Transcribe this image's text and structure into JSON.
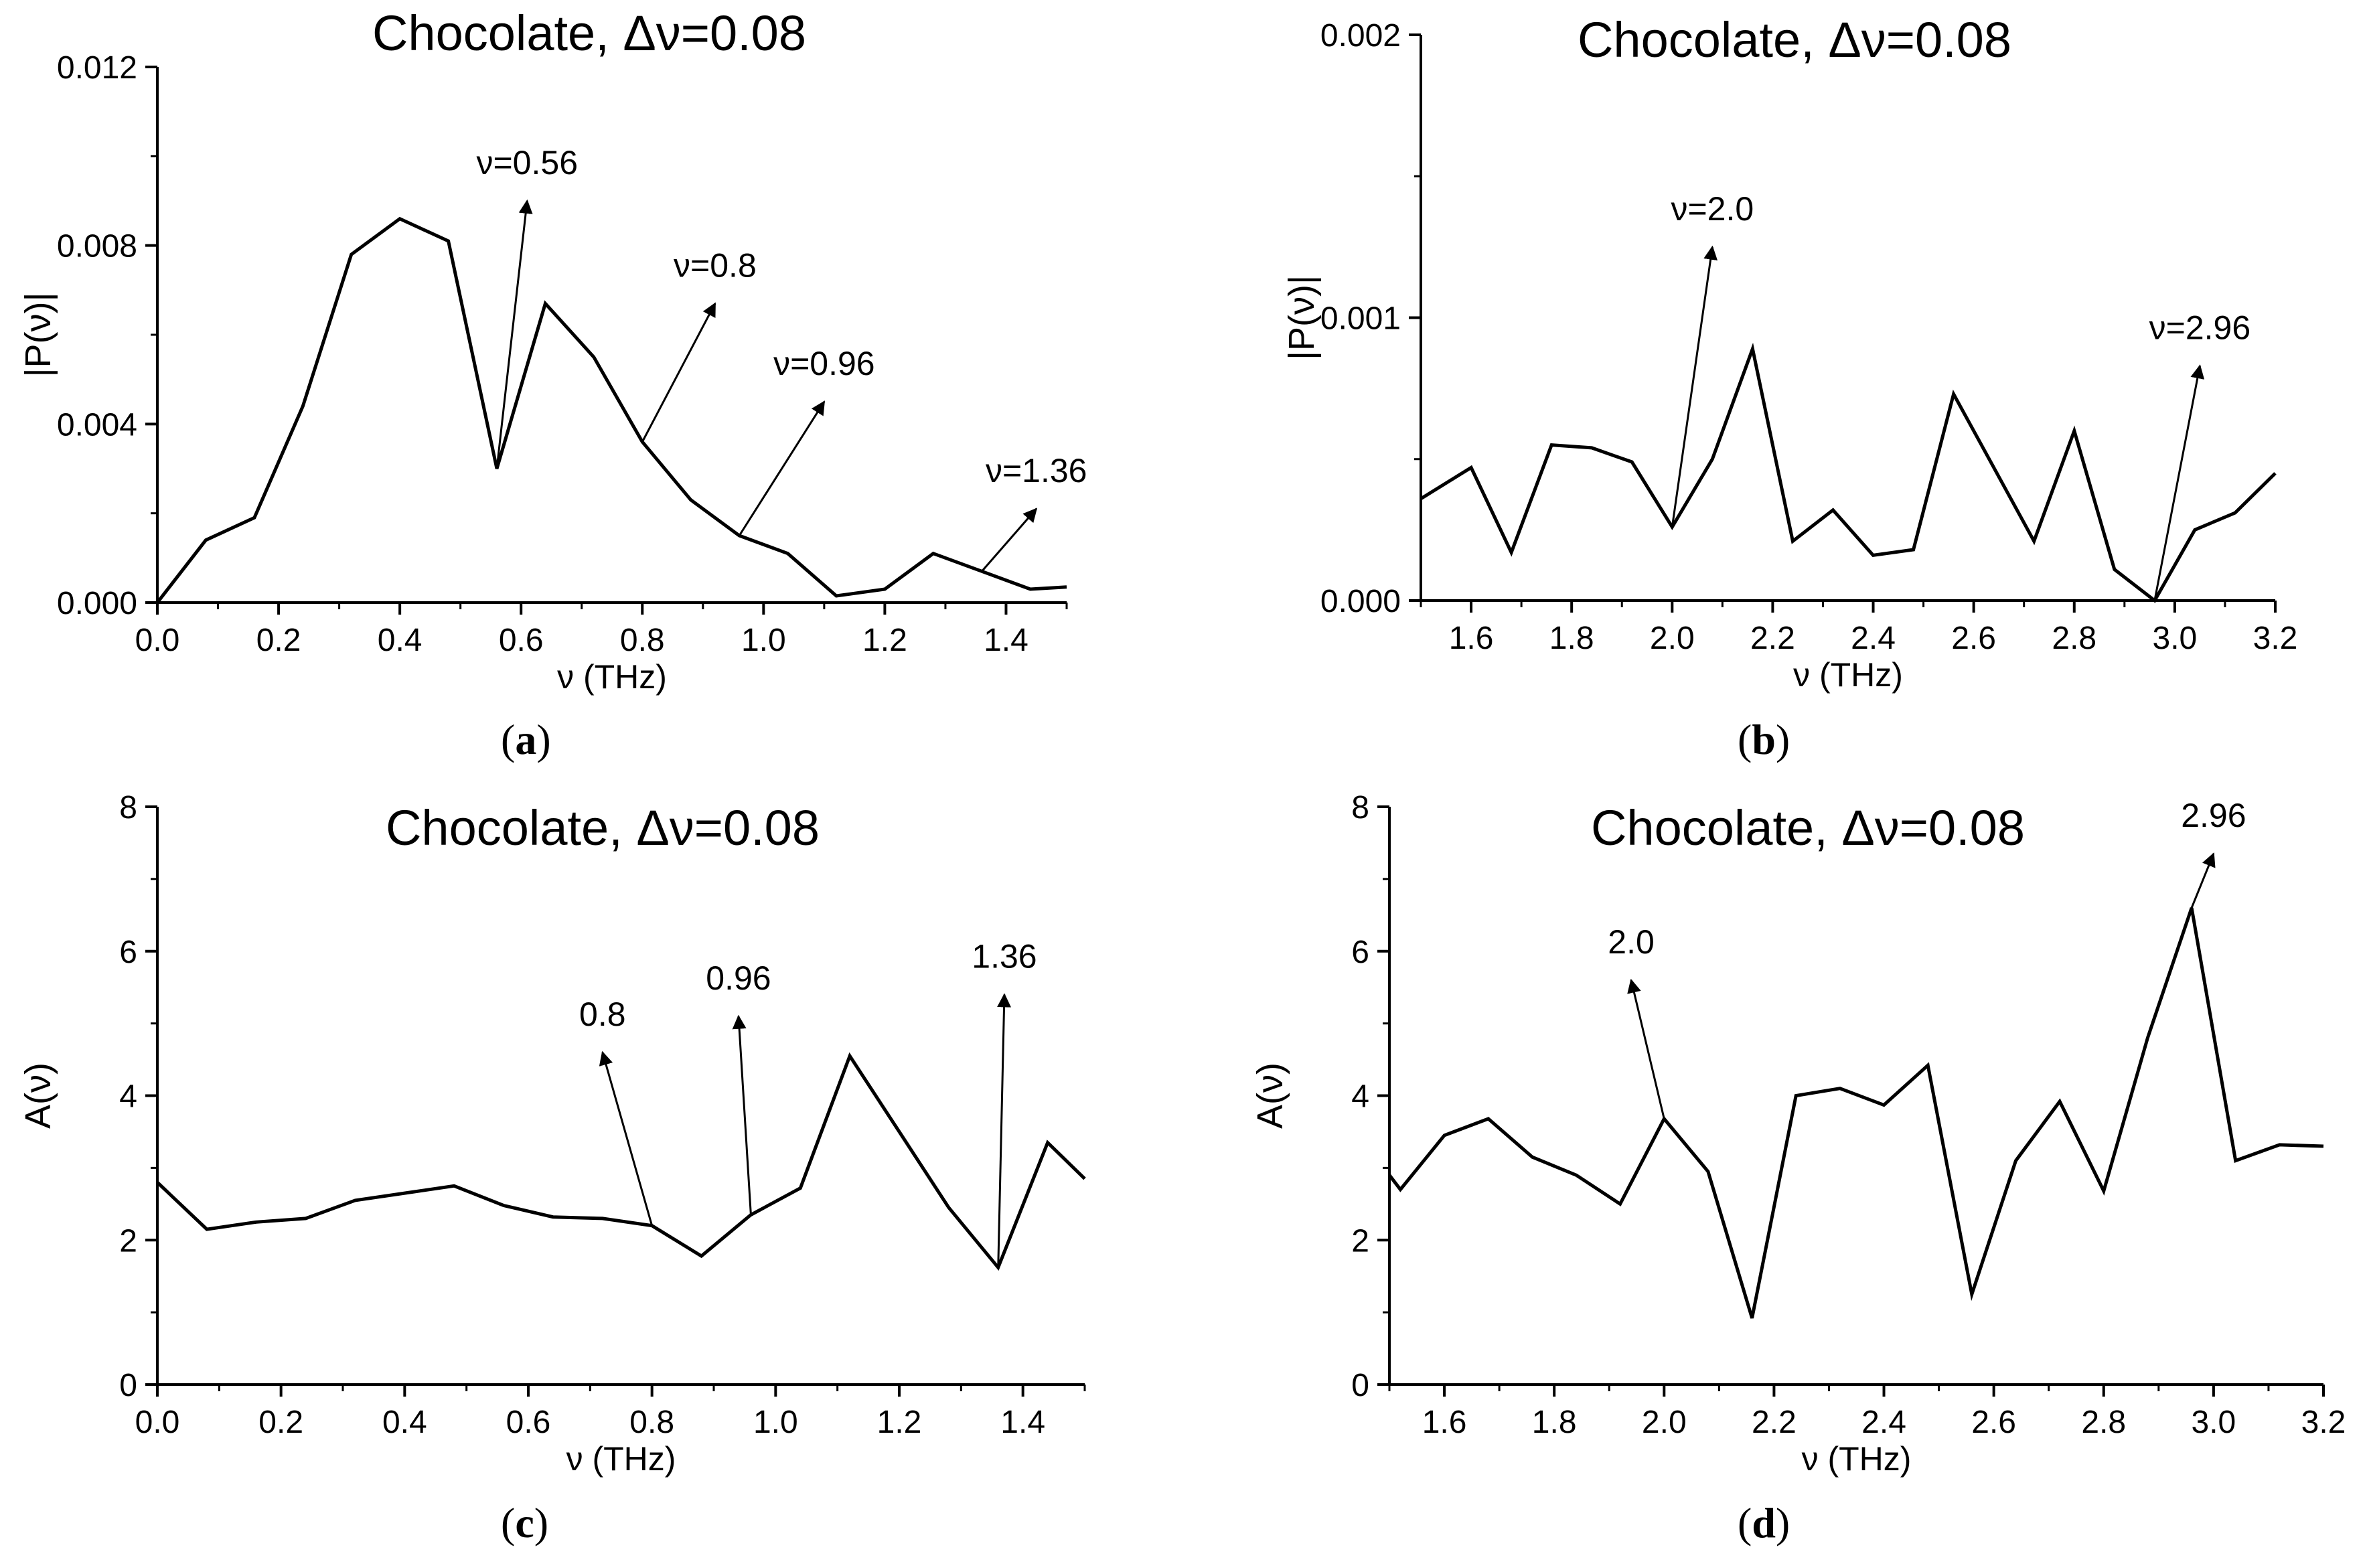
{
  "chart_data": [
    {
      "id": "a",
      "type": "line",
      "title": "Chocolate, Δν=0.08",
      "xlabel": "ν (THz)",
      "ylabel": "|P(ν)|",
      "caption": "a",
      "xlim": [
        0.0,
        1.5
      ],
      "ylim": [
        0.0,
        0.012
      ],
      "xticks": [
        "0.0",
        "0.2",
        "0.4",
        "0.6",
        "0.8",
        "1.0",
        "1.2",
        "1.4"
      ],
      "xtick_values": [
        0.0,
        0.2,
        0.4,
        0.6,
        0.8,
        1.0,
        1.2,
        1.4
      ],
      "yticks": [
        "0.000",
        "0.004",
        "0.008",
        "0.012"
      ],
      "ytick_values": [
        0.0,
        0.004,
        0.008,
        0.012
      ],
      "x": [
        0.0,
        0.08,
        0.16,
        0.24,
        0.32,
        0.4,
        0.48,
        0.56,
        0.64,
        0.72,
        0.8,
        0.88,
        0.96,
        1.04,
        1.12,
        1.2,
        1.28,
        1.36,
        1.44,
        1.5
      ],
      "y": [
        0.0,
        0.0014,
        0.0019,
        0.0044,
        0.0078,
        0.0086,
        0.0081,
        0.003,
        0.0067,
        0.0055,
        0.0036,
        0.0023,
        0.0015,
        0.0011,
        0.00015,
        0.0003,
        0.0011,
        0.0007,
        0.0003,
        0.00035
      ],
      "annotations": [
        {
          "text": "ν=0.56",
          "from": [
            0.56,
            0.003
          ],
          "to": [
            0.61,
            0.009
          ]
        },
        {
          "text": "ν=0.8",
          "from": [
            0.8,
            0.0036
          ],
          "to": [
            0.92,
            0.0067
          ]
        },
        {
          "text": "ν=0.96",
          "from": [
            0.96,
            0.0015
          ],
          "to": [
            1.1,
            0.0045
          ]
        },
        {
          "text": "ν=1.36",
          "from": [
            1.36,
            0.0007
          ],
          "to": [
            1.45,
            0.0021
          ]
        }
      ]
    },
    {
      "id": "b",
      "type": "line",
      "title": "Chocolate, Δν=0.08",
      "xlabel": "ν (THz)",
      "ylabel": "|P(ν)|",
      "caption": "b",
      "xlim": [
        1.5,
        3.2
      ],
      "ylim": [
        0.0,
        0.002
      ],
      "xticks": [
        "1.6",
        "1.8",
        "2.0",
        "2.2",
        "2.4",
        "2.6",
        "2.8",
        "3.0",
        "3.2"
      ],
      "xtick_values": [
        1.6,
        1.8,
        2.0,
        2.2,
        2.4,
        2.6,
        2.8,
        3.0,
        3.2
      ],
      "yticks": [
        "0.000",
        "0.001",
        "0.002"
      ],
      "ytick_values": [
        0.0,
        0.001,
        0.002
      ],
      "x": [
        1.5,
        1.6,
        1.68,
        1.76,
        1.84,
        1.92,
        2.0,
        2.08,
        2.16,
        2.24,
        2.32,
        2.4,
        2.48,
        2.56,
        2.64,
        2.72,
        2.8,
        2.88,
        2.96,
        3.04,
        3.12,
        3.2
      ],
      "y": [
        0.00036,
        0.00047,
        0.00017,
        0.00055,
        0.00054,
        0.00049,
        0.00026,
        0.0005,
        0.00089,
        0.00021,
        0.00032,
        0.00016,
        0.00018,
        0.00073,
        0.00047,
        0.00021,
        0.0006,
        0.00011,
        0.0,
        0.00025,
        0.00031,
        0.00045
      ],
      "annotations": [
        {
          "text": "ν=2.0",
          "from": [
            2.0,
            0.00026
          ],
          "to": [
            2.08,
            0.00125
          ]
        },
        {
          "text": "ν=2.96",
          "from": [
            2.96,
            0.0
          ],
          "to": [
            3.05,
            0.00083
          ]
        }
      ]
    },
    {
      "id": "c",
      "type": "line",
      "title": "Chocolate, Δν=0.08",
      "xlabel": "ν (THz)",
      "ylabel": "A(ν)",
      "caption": "c",
      "xlim": [
        0.0,
        1.5
      ],
      "ylim": [
        0,
        8
      ],
      "xticks": [
        "0.0",
        "0.2",
        "0.4",
        "0.6",
        "0.8",
        "1.0",
        "1.2",
        "1.4"
      ],
      "xtick_values": [
        0.0,
        0.2,
        0.4,
        0.6,
        0.8,
        1.0,
        1.2,
        1.4
      ],
      "yticks": [
        "0",
        "2",
        "4",
        "6",
        "8"
      ],
      "ytick_values": [
        0,
        2,
        4,
        6,
        8
      ],
      "x": [
        0.0,
        0.08,
        0.16,
        0.24,
        0.32,
        0.4,
        0.48,
        0.56,
        0.64,
        0.72,
        0.8,
        0.88,
        0.96,
        1.04,
        1.12,
        1.2,
        1.28,
        1.36,
        1.44,
        1.5
      ],
      "y": [
        2.8,
        2.15,
        2.25,
        2.3,
        2.55,
        2.65,
        2.75,
        2.48,
        2.32,
        2.3,
        2.2,
        1.78,
        2.35,
        2.72,
        4.55,
        3.5,
        2.45,
        1.62,
        3.35,
        2.85
      ],
      "annotations": [
        {
          "text": "0.8",
          "from": [
            0.8,
            2.2
          ],
          "to": [
            0.72,
            4.6
          ]
        },
        {
          "text": "0.96",
          "from": [
            0.96,
            2.35
          ],
          "to": [
            0.94,
            5.1
          ]
        },
        {
          "text": "1.36",
          "from": [
            1.36,
            1.62
          ],
          "to": [
            1.37,
            5.4
          ]
        }
      ]
    },
    {
      "id": "d",
      "type": "line",
      "title": "Chocolate, Δν=0.08",
      "xlabel": "ν (THz)",
      "ylabel": "A(ν)",
      "caption": "d",
      "xlim": [
        1.5,
        3.2
      ],
      "ylim": [
        0,
        8
      ],
      "xticks": [
        "1.6",
        "1.8",
        "2.0",
        "2.2",
        "2.4",
        "2.6",
        "2.8",
        "3.0",
        "3.2"
      ],
      "xtick_values": [
        1.6,
        1.8,
        2.0,
        2.2,
        2.4,
        2.6,
        2.8,
        3.0,
        3.2
      ],
      "yticks": [
        "0",
        "2",
        "4",
        "6",
        "8"
      ],
      "ytick_values": [
        0,
        2,
        4,
        6,
        8
      ],
      "x": [
        1.5,
        1.52,
        1.6,
        1.68,
        1.76,
        1.84,
        1.92,
        2.0,
        2.08,
        2.16,
        2.24,
        2.32,
        2.4,
        2.48,
        2.56,
        2.64,
        2.72,
        2.8,
        2.88,
        2.96,
        3.04,
        3.12,
        3.2
      ],
      "y": [
        2.9,
        2.7,
        3.45,
        3.68,
        3.15,
        2.9,
        2.5,
        3.68,
        2.95,
        0.92,
        4.0,
        4.1,
        3.87,
        4.42,
        1.25,
        3.1,
        3.92,
        2.68,
        4.8,
        6.6,
        3.1,
        3.32,
        3.3
      ],
      "annotations": [
        {
          "text": "2.0",
          "from": [
            2.0,
            3.68
          ],
          "to": [
            1.94,
            5.6
          ]
        },
        {
          "text": "2.96",
          "from": [
            2.96,
            6.6
          ],
          "to": [
            3.0,
            7.35
          ]
        }
      ]
    }
  ]
}
